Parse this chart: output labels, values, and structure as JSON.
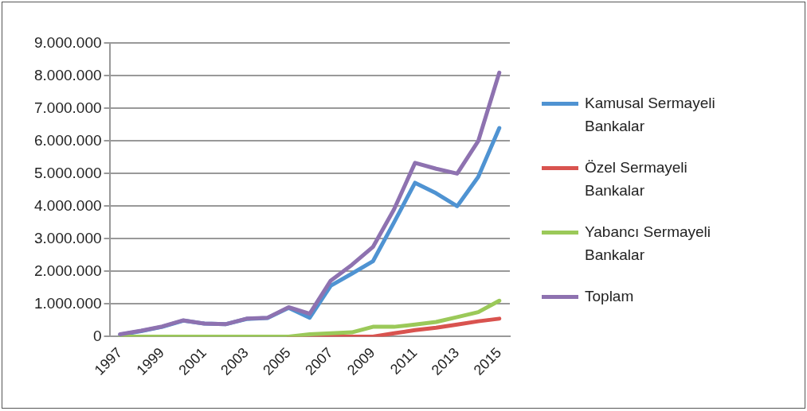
{
  "chart_data": {
    "type": "line",
    "categories": [
      "1997",
      null,
      "1999",
      null,
      "2001",
      null,
      "2003",
      null,
      "2005",
      null,
      "2007",
      null,
      "2009",
      null,
      "2011",
      null,
      "2013",
      null,
      "2015"
    ],
    "series": [
      {
        "name": "Kamusal Sermayeli Bankalar",
        "color": "#4f93d2",
        "values": [
          60000,
          170000,
          300000,
          490000,
          400000,
          380000,
          540000,
          570000,
          880000,
          580000,
          1560000,
          1930000,
          2310000,
          3500000,
          4720000,
          4400000,
          4000000,
          4900000,
          6400000
        ]
      },
      {
        "name": "Özel Sermayeli Bankalar",
        "color": "#d9534f",
        "values": [
          null,
          null,
          null,
          null,
          null,
          null,
          null,
          null,
          0,
          0,
          0,
          0,
          0,
          100000,
          200000,
          270000,
          370000,
          470000,
          550000
        ]
      },
      {
        "name": "Yabancı Sermayeli Bankalar",
        "color": "#9bc959",
        "values": [
          0,
          0,
          0,
          0,
          0,
          0,
          0,
          0,
          0,
          70000,
          100000,
          130000,
          300000,
          300000,
          370000,
          450000,
          600000,
          750000,
          1100000
        ]
      },
      {
        "name": "Toplam",
        "color": "#8e72b0",
        "values": [
          70000,
          180000,
          310000,
          500000,
          400000,
          380000,
          550000,
          580000,
          900000,
          700000,
          1720000,
          2200000,
          2750000,
          3900000,
          5330000,
          5150000,
          5000000,
          6000000,
          8100000
        ]
      }
    ],
    "ylim": [
      0,
      9000000
    ],
    "yticks": [
      {
        "value": 0,
        "label": "0"
      },
      {
        "value": 1000000,
        "label": "1.000.000"
      },
      {
        "value": 2000000,
        "label": "2.000.000"
      },
      {
        "value": 3000000,
        "label": "3.000.000"
      },
      {
        "value": 4000000,
        "label": "4.000.000"
      },
      {
        "value": 5000000,
        "label": "5.000.000"
      },
      {
        "value": 6000000,
        "label": "6.000.000"
      },
      {
        "value": 7000000,
        "label": "7.000.000"
      },
      {
        "value": 8000000,
        "label": "8.000.000"
      },
      {
        "value": 9000000,
        "label": "9.000.000"
      }
    ],
    "grid": "y",
    "legend": "right",
    "marker": "none",
    "line_style": "solid"
  }
}
